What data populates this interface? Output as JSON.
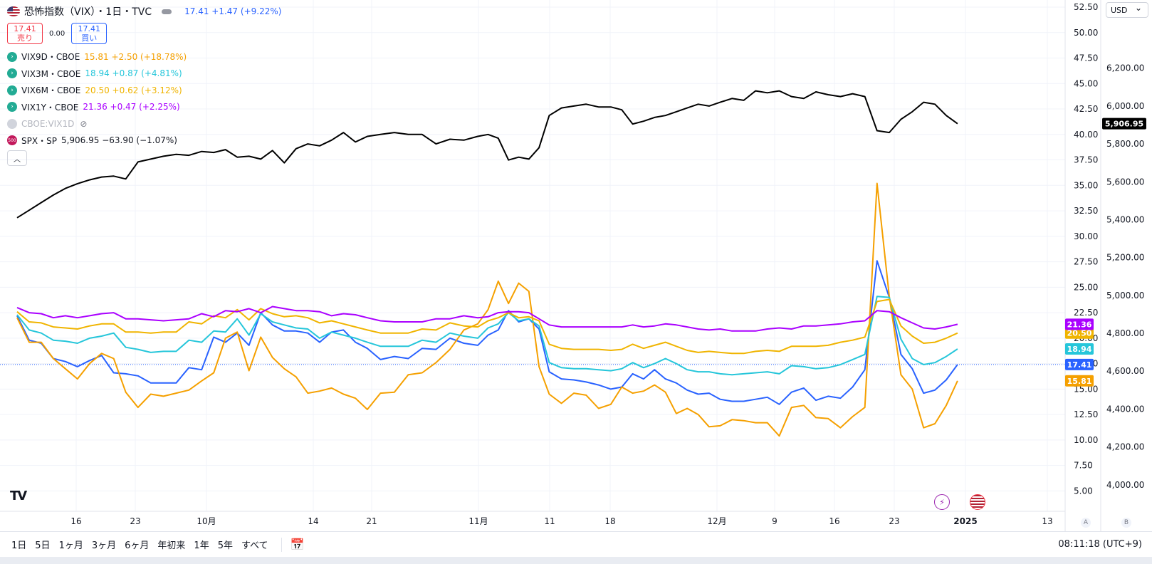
{
  "header": {
    "symbol_title": "恐怖指数（VIX）・1日・TVC",
    "price": "17.41",
    "change": "+1.47 (+9.22%)",
    "sell_price": "17.41",
    "sell_label": "売り",
    "spread": "0.00",
    "buy_price": "17.41",
    "buy_label": "買い"
  },
  "legend": [
    {
      "symbol": "VIX9D・CBOE",
      "values": "15.81 +2.50 (+18.78%)",
      "color": "#f5a000"
    },
    {
      "symbol": "VIX3M・CBOE",
      "values": "18.94 +0.87 (+4.81%)",
      "color": "#26c6da"
    },
    {
      "symbol": "VIX6M・CBOE",
      "values": "20.50 +0.62 (+3.12%)",
      "color": "#f0b400"
    },
    {
      "symbol": "VIX1Y・CBOE",
      "values": "21.36 +0.47 (+2.25%)",
      "color": "#aa00ff"
    }
  ],
  "hidden_series": "CBOE:VIX1D",
  "spx_legend": {
    "symbol": "SPX・SP",
    "values": "5,906.95 −63.90 (−1.07%)",
    "badge": "500"
  },
  "currency": "USD",
  "time_ranges": [
    "1日",
    "5日",
    "1ヶ月",
    "3ヶ月",
    "6ヶ月",
    "年初来",
    "1年",
    "5年",
    "すべて"
  ],
  "clock": "08:11:18 (UTC+9)",
  "axis_buttons": [
    "A",
    "B"
  ],
  "logo": "TV",
  "chart_data": {
    "type": "line",
    "x_tick_labels": [
      {
        "label": "16",
        "date": "2024-09-16"
      },
      {
        "label": "23",
        "date": "2024-09-23"
      },
      {
        "label": "10月",
        "date": "2024-10-01"
      },
      {
        "label": "14",
        "date": "2024-10-14"
      },
      {
        "label": "21",
        "date": "2024-10-21"
      },
      {
        "label": "11月",
        "date": "2024-11-01"
      },
      {
        "label": "11",
        "date": "2024-11-11"
      },
      {
        "label": "18",
        "date": "2024-11-18"
      },
      {
        "label": "12月",
        "date": "2024-12-02"
      },
      {
        "label": "9",
        "date": "2024-12-09"
      },
      {
        "label": "16",
        "date": "2024-12-16"
      },
      {
        "label": "23",
        "date": "2024-12-23"
      },
      {
        "label": "2025",
        "date": "2025-01-01",
        "bold": true
      },
      {
        "label": "13",
        "date": "2025-01-13"
      }
    ],
    "y_left": {
      "range": [
        3.0,
        53.2
      ],
      "ticks": [
        "5.00",
        "7.50",
        "10.00",
        "12.50",
        "15.00",
        "17.50",
        "20.00",
        "22.50",
        "25.00",
        "27.50",
        "30.00",
        "32.50",
        "35.00",
        "37.50",
        "40.00",
        "42.50",
        "45.00",
        "47.50",
        "50.00",
        "52.50"
      ]
    },
    "y_right": {
      "range": [
        3860,
        6560
      ],
      "ticks": [
        "4,000.00",
        "4,200.00",
        "4,400.00",
        "4,600.00",
        "4,800.00",
        "5,000.00",
        "5,200.00",
        "5,400.00",
        "5,600.00",
        "5,800.00",
        "6,000.00",
        "6,200.00"
      ]
    },
    "current_price_line": 17.41,
    "series": [
      {
        "name": "VIX",
        "color": "#2962ff",
        "axis": "left",
        "last_label": "17.41",
        "values": [
          22.2,
          19.8,
          19.5,
          18.0,
          17.7,
          17.2,
          17.8,
          18.3,
          16.6,
          16.5,
          16.3,
          15.6,
          15.6,
          15.6,
          17.1,
          16.9,
          20.1,
          19.6,
          20.5,
          19.3,
          22.5,
          21.3,
          20.7,
          20.7,
          20.5,
          19.6,
          20.6,
          20.8,
          19.6,
          19.0,
          17.9,
          18.2,
          18.0,
          19.0,
          18.9,
          20.0,
          19.5,
          19.3,
          20.3,
          20.8,
          22.7,
          21.6,
          21.9,
          20.9,
          16.7,
          16.0,
          15.9,
          15.7,
          15.4,
          15.0,
          15.2,
          16.5,
          16.0,
          16.9,
          16.0,
          15.6,
          14.9,
          14.5,
          14.6,
          14.0,
          13.8,
          13.8,
          14.0,
          14.2,
          13.5,
          14.7,
          15.1,
          13.9,
          14.3,
          14.1,
          15.2,
          16.9,
          27.6,
          24.0,
          18.4,
          17.0,
          14.6,
          14.9,
          15.9,
          17.41
        ]
      },
      {
        "name": "VIX9D",
        "color": "#f5a000",
        "axis": "left",
        "last_label": "15.81",
        "values": [
          22.0,
          19.6,
          19.6,
          18.0,
          17.0,
          16.0,
          17.5,
          18.5,
          18.0,
          14.7,
          13.2,
          14.5,
          14.3,
          14.6,
          14.9,
          15.8,
          16.6,
          20.0,
          20.6,
          16.8,
          20.1,
          18.1,
          17.0,
          16.2,
          14.6,
          14.8,
          15.1,
          14.5,
          14.1,
          13.0,
          14.6,
          14.7,
          16.4,
          16.6,
          17.6,
          18.9,
          20.8,
          21.4,
          22.8,
          25.6,
          23.4,
          25.4,
          24.6,
          17.2,
          14.5,
          13.6,
          14.6,
          14.4,
          13.1,
          13.5,
          15.2,
          14.6,
          14.8,
          15.4,
          14.7,
          12.6,
          13.1,
          12.5,
          11.3,
          11.4,
          12.0,
          11.9,
          11.7,
          11.7,
          10.4,
          13.2,
          13.4,
          12.2,
          12.1,
          11.2,
          12.3,
          13.2,
          35.2,
          24.1,
          16.4,
          15.0,
          11.2,
          11.6,
          13.4,
          15.81
        ]
      },
      {
        "name": "VIX3M",
        "color": "#26c6da",
        "axis": "left",
        "last_label": "18.94",
        "values": [
          22.3,
          20.8,
          20.5,
          19.8,
          19.7,
          19.5,
          20.0,
          20.2,
          20.5,
          19.1,
          18.9,
          18.6,
          18.7,
          18.7,
          19.8,
          19.6,
          20.7,
          20.6,
          21.9,
          20.3,
          22.4,
          21.6,
          21.3,
          21.0,
          20.9,
          20.0,
          20.6,
          20.3,
          20.0,
          19.6,
          19.2,
          19.2,
          19.2,
          19.8,
          19.6,
          20.5,
          20.2,
          20.0,
          21.0,
          21.4,
          22.5,
          21.7,
          21.9,
          21.2,
          17.6,
          17.1,
          17.0,
          17.0,
          16.9,
          16.8,
          17.0,
          17.6,
          17.1,
          17.5,
          18.0,
          17.5,
          16.9,
          16.7,
          16.7,
          16.5,
          16.4,
          16.5,
          16.6,
          16.7,
          16.5,
          17.3,
          17.2,
          17.0,
          17.1,
          17.4,
          17.9,
          18.4,
          24.1,
          24.0,
          19.9,
          18.0,
          17.4,
          17.6,
          18.2,
          18.94
        ]
      },
      {
        "name": "VIX6M",
        "color": "#f0b400",
        "axis": "left",
        "last_label": "20.50",
        "values": [
          22.6,
          21.6,
          21.5,
          21.1,
          21.0,
          20.9,
          21.2,
          21.4,
          21.4,
          20.6,
          20.6,
          20.5,
          20.6,
          20.6,
          21.6,
          21.4,
          22.2,
          22.0,
          22.8,
          21.8,
          22.9,
          22.4,
          22.1,
          22.2,
          22.0,
          21.5,
          21.7,
          21.4,
          21.1,
          20.8,
          20.5,
          20.5,
          20.5,
          20.9,
          20.8,
          21.5,
          21.2,
          21.1,
          21.7,
          22.0,
          22.5,
          22.0,
          22.1,
          21.7,
          19.4,
          19.0,
          18.9,
          18.9,
          18.9,
          18.8,
          18.9,
          19.4,
          19.0,
          19.3,
          19.6,
          19.2,
          18.8,
          18.6,
          18.7,
          18.6,
          18.5,
          18.5,
          18.7,
          18.8,
          18.7,
          19.2,
          19.2,
          19.2,
          19.3,
          19.6,
          19.8,
          20.1,
          23.6,
          23.8,
          21.2,
          20.2,
          19.5,
          19.6,
          20.0,
          20.5
        ]
      },
      {
        "name": "VIX1Y",
        "color": "#aa00ff",
        "axis": "left",
        "last_label": "21.36",
        "values": [
          23.0,
          22.5,
          22.4,
          22.0,
          22.2,
          22.0,
          22.2,
          22.4,
          22.5,
          21.9,
          21.9,
          21.8,
          21.7,
          21.8,
          21.9,
          22.4,
          22.1,
          22.7,
          22.6,
          22.9,
          22.5,
          23.1,
          22.9,
          22.7,
          22.7,
          22.6,
          22.2,
          22.4,
          22.3,
          22.0,
          21.7,
          21.6,
          21.6,
          21.6,
          21.9,
          21.9,
          22.2,
          22.0,
          22.1,
          22.5,
          22.6,
          22.6,
          22.5,
          21.9,
          21.3,
          21.1,
          21.1,
          21.1,
          21.1,
          21.1,
          21.1,
          21.3,
          21.1,
          21.2,
          21.4,
          21.3,
          21.1,
          20.9,
          20.8,
          20.9,
          20.7,
          20.7,
          20.7,
          20.9,
          21.0,
          20.9,
          21.2,
          21.2,
          21.3,
          21.4,
          21.6,
          21.7,
          22.7,
          22.6,
          22.0,
          21.5,
          21.0,
          20.9,
          21.1,
          21.36
        ]
      },
      {
        "name": "SPX",
        "color": "#000000",
        "axis": "right",
        "last_label": "5,906.95",
        "values": [
          5410,
          5450,
          5490,
          5530,
          5565,
          5590,
          5610,
          5625,
          5630,
          5615,
          5705,
          5720,
          5735,
          5745,
          5740,
          5760,
          5755,
          5770,
          5730,
          5735,
          5720,
          5765,
          5700,
          5775,
          5800,
          5790,
          5820,
          5860,
          5810,
          5840,
          5850,
          5860,
          5850,
          5850,
          5800,
          5825,
          5820,
          5840,
          5850,
          5830,
          5715,
          5730,
          5720,
          5780,
          5950,
          5990,
          6000,
          6010,
          5995,
          5995,
          5980,
          5905,
          5920,
          5940,
          5950,
          5970,
          5990,
          6010,
          6000,
          6020,
          6040,
          6030,
          6080,
          6070,
          6080,
          6050,
          6040,
          6075,
          6060,
          6050,
          6065,
          6050,
          5870,
          5860,
          5930,
          5970,
          6020,
          6010,
          5950,
          5906.95
        ]
      }
    ]
  }
}
